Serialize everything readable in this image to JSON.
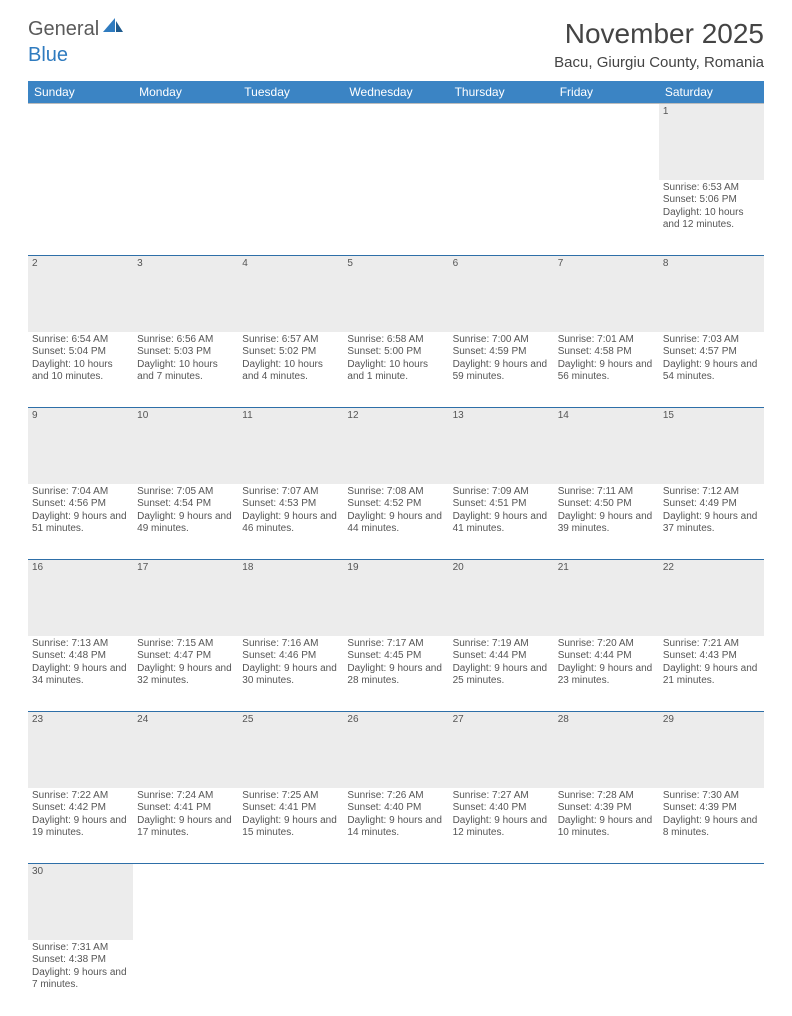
{
  "header": {
    "logo_general": "General",
    "logo_blue": "Blue",
    "month_title": "November 2025",
    "location": "Bacu, Giurgiu County, Romania"
  },
  "colors": {
    "header_blue": "#3b84c4",
    "row_divider": "#2e6fa8",
    "day_bg": "#ececec",
    "text": "#555555",
    "logo_blue": "#2f7bbf",
    "logo_gray": "#5a5a5a"
  },
  "weekdays": [
    "Sunday",
    "Monday",
    "Tuesday",
    "Wednesday",
    "Thursday",
    "Friday",
    "Saturday"
  ],
  "weeks": [
    [
      null,
      null,
      null,
      null,
      null,
      null,
      {
        "n": "1",
        "sunrise": "Sunrise: 6:53 AM",
        "sunset": "Sunset: 5:06 PM",
        "daylight": "Daylight: 10 hours and 12 minutes."
      }
    ],
    [
      {
        "n": "2",
        "sunrise": "Sunrise: 6:54 AM",
        "sunset": "Sunset: 5:04 PM",
        "daylight": "Daylight: 10 hours and 10 minutes."
      },
      {
        "n": "3",
        "sunrise": "Sunrise: 6:56 AM",
        "sunset": "Sunset: 5:03 PM",
        "daylight": "Daylight: 10 hours and 7 minutes."
      },
      {
        "n": "4",
        "sunrise": "Sunrise: 6:57 AM",
        "sunset": "Sunset: 5:02 PM",
        "daylight": "Daylight: 10 hours and 4 minutes."
      },
      {
        "n": "5",
        "sunrise": "Sunrise: 6:58 AM",
        "sunset": "Sunset: 5:00 PM",
        "daylight": "Daylight: 10 hours and 1 minute."
      },
      {
        "n": "6",
        "sunrise": "Sunrise: 7:00 AM",
        "sunset": "Sunset: 4:59 PM",
        "daylight": "Daylight: 9 hours and 59 minutes."
      },
      {
        "n": "7",
        "sunrise": "Sunrise: 7:01 AM",
        "sunset": "Sunset: 4:58 PM",
        "daylight": "Daylight: 9 hours and 56 minutes."
      },
      {
        "n": "8",
        "sunrise": "Sunrise: 7:03 AM",
        "sunset": "Sunset: 4:57 PM",
        "daylight": "Daylight: 9 hours and 54 minutes."
      }
    ],
    [
      {
        "n": "9",
        "sunrise": "Sunrise: 7:04 AM",
        "sunset": "Sunset: 4:56 PM",
        "daylight": "Daylight: 9 hours and 51 minutes."
      },
      {
        "n": "10",
        "sunrise": "Sunrise: 7:05 AM",
        "sunset": "Sunset: 4:54 PM",
        "daylight": "Daylight: 9 hours and 49 minutes."
      },
      {
        "n": "11",
        "sunrise": "Sunrise: 7:07 AM",
        "sunset": "Sunset: 4:53 PM",
        "daylight": "Daylight: 9 hours and 46 minutes."
      },
      {
        "n": "12",
        "sunrise": "Sunrise: 7:08 AM",
        "sunset": "Sunset: 4:52 PM",
        "daylight": "Daylight: 9 hours and 44 minutes."
      },
      {
        "n": "13",
        "sunrise": "Sunrise: 7:09 AM",
        "sunset": "Sunset: 4:51 PM",
        "daylight": "Daylight: 9 hours and 41 minutes."
      },
      {
        "n": "14",
        "sunrise": "Sunrise: 7:11 AM",
        "sunset": "Sunset: 4:50 PM",
        "daylight": "Daylight: 9 hours and 39 minutes."
      },
      {
        "n": "15",
        "sunrise": "Sunrise: 7:12 AM",
        "sunset": "Sunset: 4:49 PM",
        "daylight": "Daylight: 9 hours and 37 minutes."
      }
    ],
    [
      {
        "n": "16",
        "sunrise": "Sunrise: 7:13 AM",
        "sunset": "Sunset: 4:48 PM",
        "daylight": "Daylight: 9 hours and 34 minutes."
      },
      {
        "n": "17",
        "sunrise": "Sunrise: 7:15 AM",
        "sunset": "Sunset: 4:47 PM",
        "daylight": "Daylight: 9 hours and 32 minutes."
      },
      {
        "n": "18",
        "sunrise": "Sunrise: 7:16 AM",
        "sunset": "Sunset: 4:46 PM",
        "daylight": "Daylight: 9 hours and 30 minutes."
      },
      {
        "n": "19",
        "sunrise": "Sunrise: 7:17 AM",
        "sunset": "Sunset: 4:45 PM",
        "daylight": "Daylight: 9 hours and 28 minutes."
      },
      {
        "n": "20",
        "sunrise": "Sunrise: 7:19 AM",
        "sunset": "Sunset: 4:44 PM",
        "daylight": "Daylight: 9 hours and 25 minutes."
      },
      {
        "n": "21",
        "sunrise": "Sunrise: 7:20 AM",
        "sunset": "Sunset: 4:44 PM",
        "daylight": "Daylight: 9 hours and 23 minutes."
      },
      {
        "n": "22",
        "sunrise": "Sunrise: 7:21 AM",
        "sunset": "Sunset: 4:43 PM",
        "daylight": "Daylight: 9 hours and 21 minutes."
      }
    ],
    [
      {
        "n": "23",
        "sunrise": "Sunrise: 7:22 AM",
        "sunset": "Sunset: 4:42 PM",
        "daylight": "Daylight: 9 hours and 19 minutes."
      },
      {
        "n": "24",
        "sunrise": "Sunrise: 7:24 AM",
        "sunset": "Sunset: 4:41 PM",
        "daylight": "Daylight: 9 hours and 17 minutes."
      },
      {
        "n": "25",
        "sunrise": "Sunrise: 7:25 AM",
        "sunset": "Sunset: 4:41 PM",
        "daylight": "Daylight: 9 hours and 15 minutes."
      },
      {
        "n": "26",
        "sunrise": "Sunrise: 7:26 AM",
        "sunset": "Sunset: 4:40 PM",
        "daylight": "Daylight: 9 hours and 14 minutes."
      },
      {
        "n": "27",
        "sunrise": "Sunrise: 7:27 AM",
        "sunset": "Sunset: 4:40 PM",
        "daylight": "Daylight: 9 hours and 12 minutes."
      },
      {
        "n": "28",
        "sunrise": "Sunrise: 7:28 AM",
        "sunset": "Sunset: 4:39 PM",
        "daylight": "Daylight: 9 hours and 10 minutes."
      },
      {
        "n": "29",
        "sunrise": "Sunrise: 7:30 AM",
        "sunset": "Sunset: 4:39 PM",
        "daylight": "Daylight: 9 hours and 8 minutes."
      }
    ],
    [
      {
        "n": "30",
        "sunrise": "Sunrise: 7:31 AM",
        "sunset": "Sunset: 4:38 PM",
        "daylight": "Daylight: 9 hours and 7 minutes."
      },
      null,
      null,
      null,
      null,
      null,
      null
    ]
  ]
}
